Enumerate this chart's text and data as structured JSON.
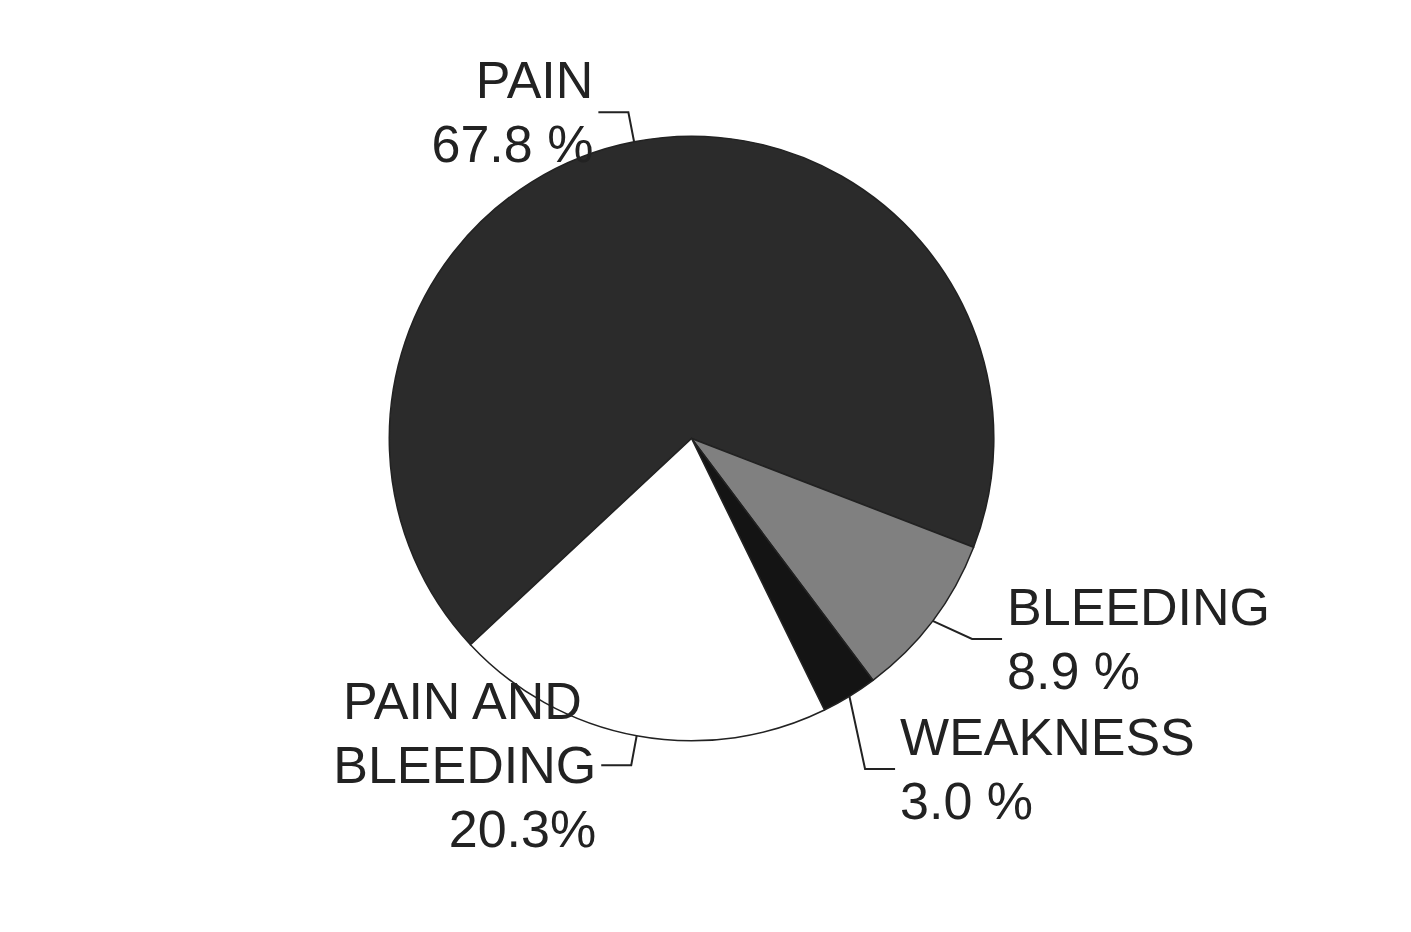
{
  "chart_data": {
    "type": "pie",
    "categories": [
      "PAIN",
      "BLEEDING",
      "WEAKNESS",
      "PAIN AND BLEEDING"
    ],
    "values": [
      67.8,
      8.9,
      3.0,
      20.3
    ],
    "value_labels": [
      "67.8 %",
      "8.9 %",
      "3.0 %",
      "20.3%"
    ],
    "colors": [
      "#2b2b2b",
      "#808080",
      "#141414",
      "#ffffff"
    ],
    "legend": false
  }
}
